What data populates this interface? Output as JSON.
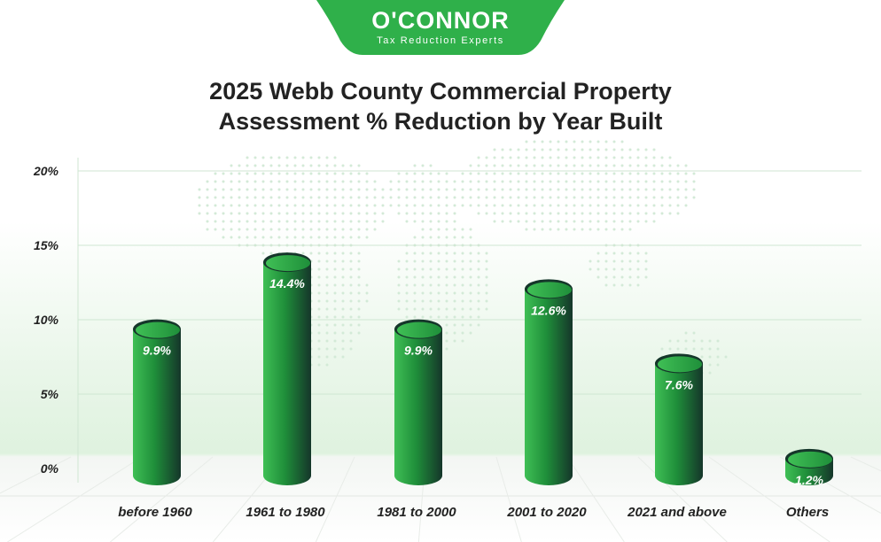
{
  "logo": {
    "name": "O'CONNOR",
    "tagline": "Tax Reduction Experts",
    "color": "#2fb04a"
  },
  "colors": {
    "bar_light": "#3fbf55",
    "bar_mid": "#1f8f3a",
    "bar_dark": "#15362a",
    "grid": "#cfe6d2"
  },
  "chart_data": {
    "type": "bar",
    "title": "2025 Webb County Commercial Property Assessment % Reduction by Year Built",
    "title_lines": [
      "2025 Webb County Commercial Property",
      "Assessment % Reduction by Year Built"
    ],
    "xlabel": "",
    "ylabel": "",
    "ylim": [
      0,
      20
    ],
    "yticks": [
      0,
      5,
      10,
      15,
      20
    ],
    "ytick_labels": [
      "0%",
      "5%",
      "10%",
      "15%",
      "20%"
    ],
    "grid": true,
    "categories": [
      "before 1960",
      "1961 to 1980",
      "1981 to 2000",
      "2001 to 2020",
      "2021 and above",
      "Others"
    ],
    "values": [
      9.9,
      14.4,
      9.9,
      12.6,
      7.6,
      1.2
    ],
    "value_labels": [
      "9.9%",
      "14.4%",
      "9.9%",
      "12.6%",
      "7.6%",
      "1.2%"
    ]
  }
}
